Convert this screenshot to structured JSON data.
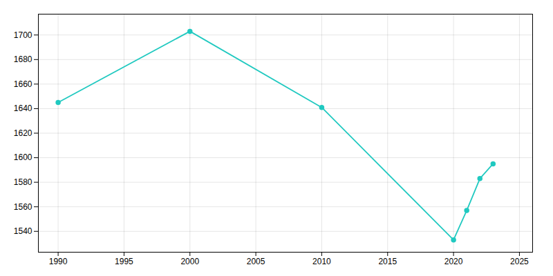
{
  "chart_data": {
    "type": "line",
    "x": [
      1990,
      2000,
      2010,
      2020,
      2021,
      2022,
      2023
    ],
    "values": [
      1645,
      1703,
      1641,
      1533,
      1557,
      1583,
      1595
    ],
    "color": "#20C9C0",
    "marker": "circle",
    "xlim": [
      1988.5,
      2026
    ],
    "ylim": [
      1523,
      1717
    ],
    "xticks": [
      1990,
      1995,
      2000,
      2005,
      2010,
      2015,
      2020,
      2025
    ],
    "yticks": [
      1540,
      1560,
      1580,
      1600,
      1620,
      1640,
      1660,
      1680,
      1700
    ],
    "grid": true
  }
}
